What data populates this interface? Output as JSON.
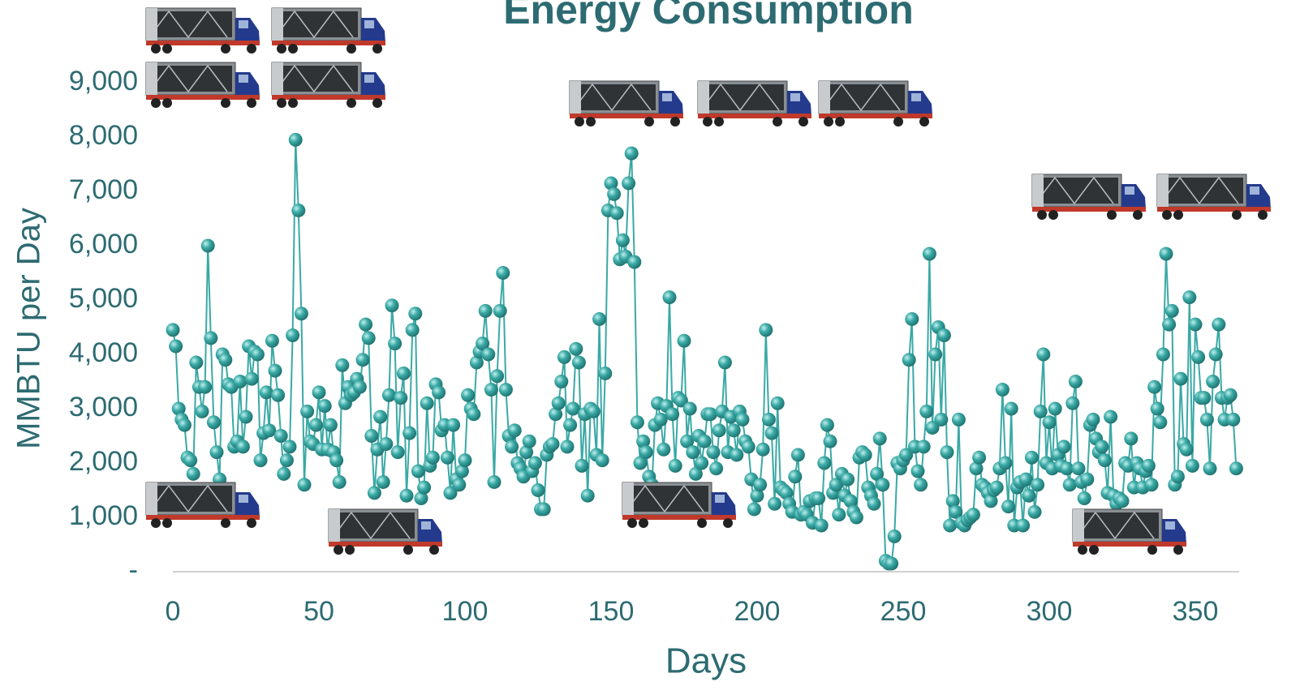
{
  "chart_data": {
    "type": "line",
    "title": "Energy Consumption",
    "x_label": "Days",
    "y_label": "MMBTU per Day",
    "color": "#3aa9a5",
    "xlim": [
      0,
      365
    ],
    "xticks": [
      0,
      50,
      100,
      150,
      200,
      250,
      300,
      350
    ],
    "ylim": [
      0,
      9000
    ],
    "yticks": [
      {
        "value": 0,
        "label": "-"
      },
      {
        "value": 1000,
        "label": "1,000"
      },
      {
        "value": 2000,
        "label": "2,000"
      },
      {
        "value": 3000,
        "label": "3,000"
      },
      {
        "value": 4000,
        "label": "4,000"
      },
      {
        "value": 5000,
        "label": "5,000"
      },
      {
        "value": 6000,
        "label": "6,000"
      },
      {
        "value": 7000,
        "label": "7,000"
      },
      {
        "value": 8000,
        "label": "8,000"
      },
      {
        "value": 9000,
        "label": "9,000"
      }
    ],
    "x": [
      0,
      1,
      2,
      3,
      4,
      5,
      6,
      7,
      8,
      9,
      10,
      11,
      12,
      13,
      14,
      15,
      16,
      17,
      18,
      19,
      20,
      21,
      22,
      23,
      24,
      25,
      26,
      27,
      28,
      29,
      30,
      31,
      32,
      33,
      34,
      35,
      36,
      37,
      38,
      39,
      40,
      41,
      42,
      43,
      44,
      45,
      46,
      47,
      48,
      49,
      50,
      51,
      52,
      53,
      54,
      55,
      56,
      57,
      58,
      59,
      60,
      61,
      62,
      63,
      64,
      65,
      66,
      67,
      68,
      69,
      70,
      71,
      72,
      73,
      74,
      75,
      76,
      77,
      78,
      79,
      80,
      81,
      82,
      83,
      84,
      85,
      86,
      87,
      88,
      89,
      90,
      91,
      92,
      93,
      94,
      95,
      96,
      97,
      98,
      99,
      100,
      101,
      102,
      103,
      104,
      105,
      106,
      107,
      108,
      109,
      110,
      111,
      112,
      113,
      114,
      115,
      116,
      117,
      118,
      119,
      120,
      121,
      122,
      123,
      124,
      125,
      126,
      127,
      128,
      129,
      130,
      131,
      132,
      133,
      134,
      135,
      136,
      137,
      138,
      139,
      140,
      141,
      142,
      143,
      144,
      145,
      146,
      147,
      148,
      149,
      150,
      151,
      152,
      153,
      154,
      155,
      156,
      157,
      158,
      159,
      160,
      161,
      162,
      163,
      164,
      165,
      166,
      167,
      168,
      169,
      170,
      171,
      172,
      173,
      174,
      175,
      176,
      177,
      178,
      179,
      180,
      181,
      182,
      183,
      184,
      185,
      186,
      187,
      188,
      189,
      190,
      191,
      192,
      193,
      194,
      195,
      196,
      197,
      198,
      199,
      200,
      201,
      202,
      203,
      204,
      205,
      206,
      207,
      208,
      209,
      210,
      211,
      212,
      213,
      214,
      215,
      216,
      217,
      218,
      219,
      220,
      221,
      222,
      223,
      224,
      225,
      226,
      227,
      228,
      229,
      230,
      231,
      232,
      233,
      234,
      235,
      236,
      237,
      238,
      239,
      240,
      241,
      242,
      243,
      244,
      245,
      246,
      247,
      248,
      249,
      250,
      251,
      252,
      253,
      254,
      255,
      256,
      257,
      258,
      259,
      260,
      261,
      262,
      263,
      264,
      265,
      266,
      267,
      268,
      269,
      270,
      271,
      272,
      273,
      274,
      275,
      276,
      277,
      278,
      279,
      280,
      281,
      282,
      283,
      284,
      285,
      286,
      287,
      288,
      289,
      290,
      291,
      292,
      293,
      294,
      295,
      296,
      297,
      298,
      299,
      300,
      301,
      302,
      303,
      304,
      305,
      306,
      307,
      308,
      309,
      310,
      311,
      312,
      313,
      314,
      315,
      316,
      317,
      318,
      319,
      320,
      321,
      322,
      323,
      324,
      325,
      326,
      327,
      328,
      329,
      330,
      331,
      332,
      333,
      334,
      335,
      336,
      337,
      338,
      339,
      340,
      341,
      342,
      343,
      344,
      345,
      346,
      347,
      348,
      349,
      350,
      351,
      352,
      353,
      354,
      355,
      356,
      357,
      358,
      359,
      360,
      361,
      362,
      363,
      364
    ],
    "values": [
      4450,
      4150,
      3000,
      2800,
      2700,
      2100,
      2050,
      1800,
      3850,
      3400,
      2950,
      3400,
      6000,
      4300,
      2750,
      2200,
      1700,
      4000,
      3900,
      3450,
      3400,
      2300,
      2400,
      3500,
      2300,
      2850,
      4150,
      3550,
      4050,
      4000,
      2050,
      2550,
      3300,
      2600,
      4250,
      3700,
      3250,
      2500,
      1800,
      2050,
      2300,
      4350,
      7950,
      6650,
      4750,
      1600,
      2950,
      2400,
      2350,
      2700,
      3300,
      2250,
      3050,
      2250,
      2700,
      2200,
      2050,
      1650,
      3800,
      3100,
      3400,
      3250,
      3300,
      3550,
      3400,
      3900,
      4550,
      4300,
      2500,
      1450,
      2250,
      2850,
      1650,
      2350,
      3250,
      4900,
      4200,
      2200,
      3200,
      3650,
      1400,
      2550,
      4450,
      4750,
      1850,
      1350,
      1550,
      3100,
      1950,
      2100,
      3450,
      3300,
      2600,
      2700,
      2100,
      1450,
      2700,
      1700,
      1600,
      1850,
      2050,
      3250,
      3000,
      2900,
      3850,
      4050,
      4200,
      4800,
      4000,
      3350,
      1650,
      3600,
      4800,
      5500,
      3350,
      2500,
      2300,
      2600,
      2000,
      1900,
      1750,
      2200,
      2400,
      1850,
      2000,
      1500,
      1150,
      1150,
      2150,
      2300,
      2350,
      2900,
      3100,
      3500,
      3950,
      2300,
      2700,
      3000,
      4100,
      3850,
      1950,
      2900,
      1400,
      3000,
      2950,
      2150,
      4650,
      2050,
      3650,
      6650,
      7150,
      6950,
      6600,
      5750,
      6100,
      5800,
      7150,
      7700,
      5700,
      2750,
      2000,
      2400,
      2200,
      1750,
      1600,
      2700,
      3100,
      2800,
      2250,
      3050,
      5050,
      2900,
      1950,
      3200,
      3150,
      4250,
      2400,
      3000,
      2200,
      1800,
      2500,
      2000,
      2400,
      2900,
      2900,
      2200,
      1900,
      2600,
      2950,
      3850,
      2200,
      2850,
      2600,
      2150,
      2950,
      2800,
      2400,
      2300,
      1700,
      1150,
      1400,
      1600,
      2250,
      4450,
      2800,
      2550,
      1250,
      3100,
      1550,
      1500,
      1450,
      1250,
      1100,
      1750,
      2150,
      1050,
      1100,
      1050,
      1300,
      900,
      1350,
      1350,
      850,
      2000,
      2700,
      2400,
      1450,
      1600,
      1050,
      1800,
      1400,
      1700,
      1300,
      1100,
      1000,
      2100,
      2200,
      2150,
      1550,
      1400,
      1250,
      1800,
      2450,
      1600,
      200,
      150,
      150,
      650,
      2000,
      1900,
      2050,
      2150,
      3900,
      4650,
      2300,
      1850,
      1600,
      2300,
      2950,
      5850,
      2650,
      4000,
      4500,
      2800,
      4350,
      2200,
      850,
      1300,
      1100,
      2800,
      900,
      850,
      950,
      1000,
      1050,
      1900,
      2100,
      1600,
      1550,
      1450,
      1300,
      1500,
      1550,
      1900,
      3350,
      2000,
      1200,
      3000,
      850,
      1550,
      1650,
      850,
      1700,
      1400,
      2100,
      1100,
      1600,
      2950,
      4000,
      2000,
      2750,
      1900,
      3000,
      2150,
      1950,
      2300,
      1900,
      1600,
      3100,
      3500,
      1900,
      1650,
      1350,
      1700,
      2700,
      2800,
      2450,
      2200,
      2300,
      2050,
      1450,
      2850,
      1400,
      1250,
      1350,
      1300,
      2000,
      1950,
      2450,
      1550,
      2000,
      1900,
      1550,
      1850,
      1950,
      1600,
      3400,
      3000,
      2750,
      4000,
      5850,
      4550,
      4800,
      1600,
      1750,
      3550,
      2350,
      2250,
      5050,
      1950,
      4550,
      3950,
      3200,
      3200,
      2800,
      1900,
      3500,
      4000,
      4550,
      3200,
      2800,
      3200,
      3250,
      2800,
      1900
    ]
  }
}
